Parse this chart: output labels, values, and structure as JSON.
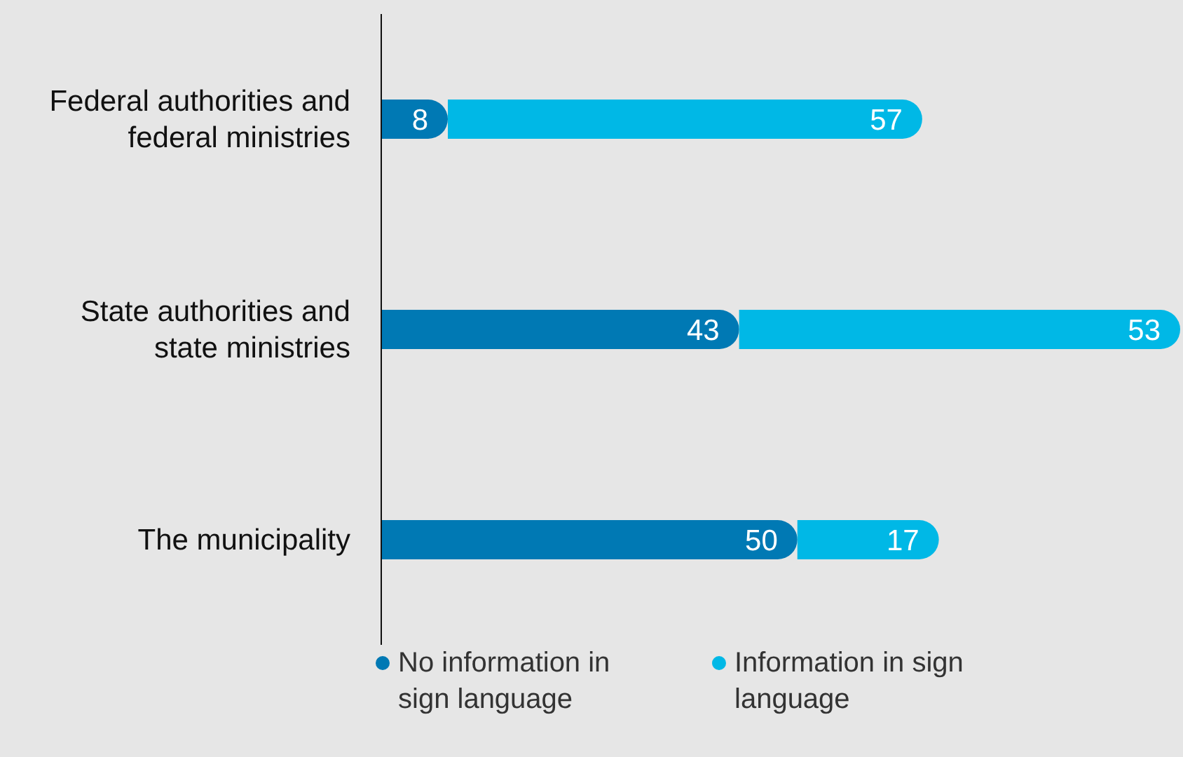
{
  "chart_data": {
    "type": "bar",
    "orientation": "horizontal",
    "stacked": true,
    "categories": [
      "Federal authorities and federal ministries",
      "State authorities and state ministries",
      "The municipality"
    ],
    "series": [
      {
        "name": "No information in sign language",
        "color": "#0079b4",
        "values": [
          8,
          43,
          50
        ]
      },
      {
        "name": "Information in sign language",
        "color": "#00b8e6",
        "values": [
          57,
          53,
          17
        ]
      }
    ],
    "data_labels": true,
    "legend": "bottom",
    "grid": false
  }
}
